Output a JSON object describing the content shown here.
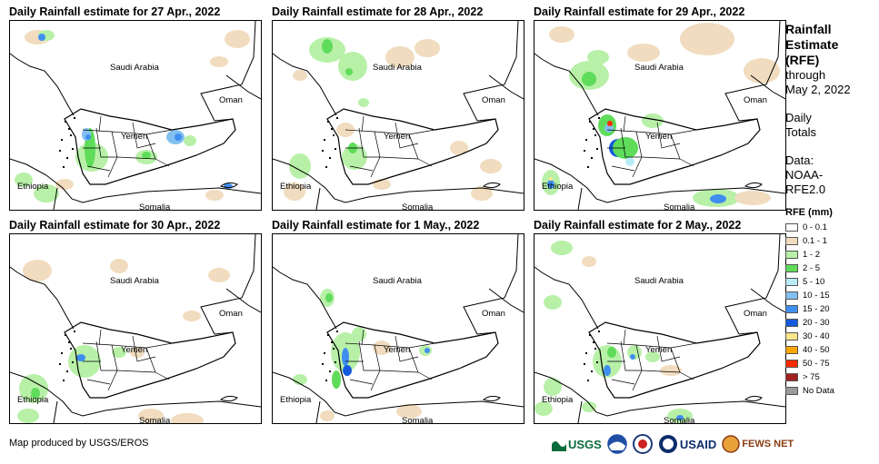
{
  "panels": [
    {
      "title": "Daily Rainfall estimate for 27 Apr., 2022"
    },
    {
      "title": "Daily Rainfall estimate for 28 Apr., 2022"
    },
    {
      "title": "Daily Rainfall estimate for 29 Apr., 2022"
    },
    {
      "title": "Daily Rainfall estimate for 30 Apr., 2022"
    },
    {
      "title": "Daily Rainfall estimate for 1 May., 2022"
    },
    {
      "title": "Daily Rainfall estimate for 2 May., 2022"
    }
  ],
  "map_labels": {
    "saudi": "Saudi Arabia",
    "oman": "Oman",
    "yemen": "Yemen",
    "ethiopia": "Ethiopia",
    "somalia": "Somalia"
  },
  "sidebar": {
    "title_1": "Rainfall",
    "title_2": "Estimate",
    "title_3": "(RFE)",
    "through": "through",
    "date": "May 2, 2022",
    "daily": "Daily",
    "totals": "Totals",
    "data_1": "Data:",
    "data_2": "NOAA-",
    "data_3": "RFE2.0"
  },
  "legend": {
    "title": "RFE (mm)",
    "items": [
      {
        "label": "0 - 0.1",
        "color": "#ffffff"
      },
      {
        "label": "0.1 - 1",
        "color": "#f1dcbf"
      },
      {
        "label": "1 - 2",
        "color": "#b8f0a8"
      },
      {
        "label": "2 - 5",
        "color": "#5fdc5a"
      },
      {
        "label": "5 - 10",
        "color": "#b8ecf7"
      },
      {
        "label": "10 - 15",
        "color": "#83c0f0"
      },
      {
        "label": "15 - 20",
        "color": "#3f8ef0"
      },
      {
        "label": "20 - 30",
        "color": "#1459e0"
      },
      {
        "label": "30 - 40",
        "color": "#ffe68a"
      },
      {
        "label": "40 - 50",
        "color": "#ffa500"
      },
      {
        "label": "50 - 75",
        "color": "#ff2a00"
      },
      {
        "label": "> 75",
        "color": "#a32020"
      },
      {
        "label": "No Data",
        "color": "#9a9a9a"
      }
    ]
  },
  "footer": "Map produced by USGS/EROS",
  "logos": {
    "usgs": "USGS",
    "usaid": "USAID",
    "fews": "FEWS NET"
  }
}
